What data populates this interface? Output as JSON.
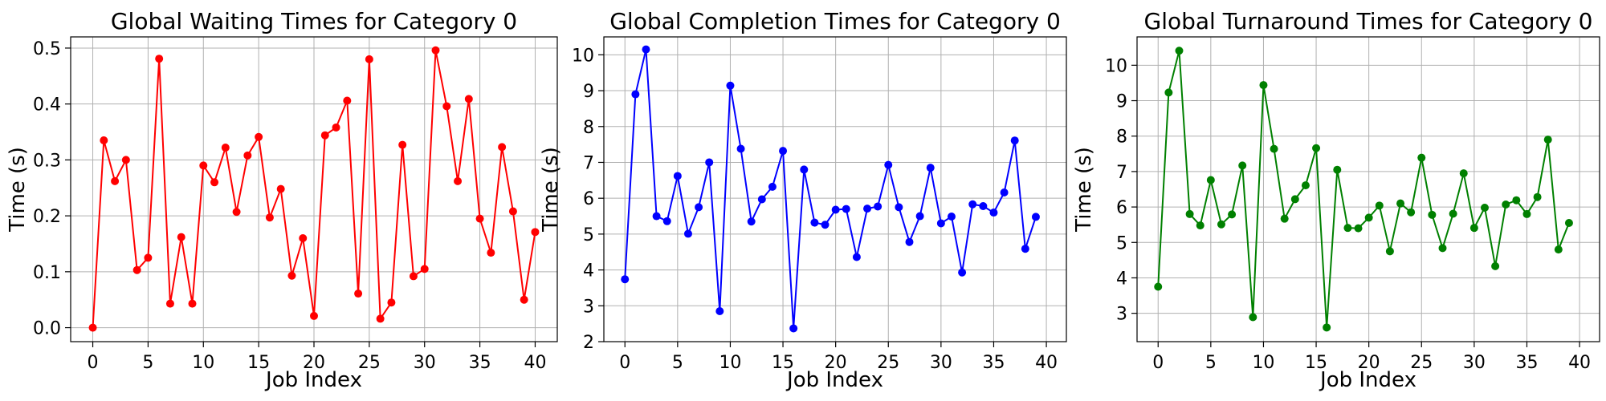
{
  "chart_data": [
    {
      "type": "line",
      "title": "Global Waiting Times for Category 0",
      "xlabel": "Job Index",
      "ylabel": "Time (s)",
      "xlim": [
        -2,
        42
      ],
      "ylim": [
        -0.025,
        0.52
      ],
      "xticks": [
        0,
        5,
        10,
        15,
        20,
        25,
        30,
        35,
        40
      ],
      "yticks": [
        0.0,
        0.1,
        0.2,
        0.3,
        0.4,
        0.5
      ],
      "ytick_labels": [
        "0.0",
        "0.1",
        "0.2",
        "0.3",
        "0.4",
        "0.5"
      ],
      "grid": true,
      "color": "#ff0000",
      "x": [
        0,
        1,
        2,
        3,
        4,
        5,
        6,
        7,
        8,
        9,
        10,
        11,
        12,
        13,
        14,
        15,
        16,
        17,
        18,
        19,
        20,
        21,
        22,
        23,
        24,
        25,
        26,
        27,
        28,
        29,
        30,
        31,
        32,
        33,
        34,
        35,
        36,
        37,
        38,
        39,
        40
      ],
      "values": [
        0.0,
        0.335,
        0.262,
        0.3,
        0.103,
        0.125,
        0.481,
        0.043,
        0.162,
        0.043,
        0.29,
        0.26,
        0.322,
        0.207,
        0.308,
        0.341,
        0.197,
        0.248,
        0.093,
        0.16,
        0.021,
        0.344,
        0.358,
        0.406,
        0.061,
        0.48,
        0.016,
        0.045,
        0.327,
        0.092,
        0.105,
        0.496,
        0.396,
        0.262,
        0.409,
        0.195,
        0.134,
        0.323,
        0.208,
        0.05,
        0.171
      ]
    },
    {
      "type": "line",
      "title": "Global Completion Times for Category 0",
      "xlabel": "Job Index",
      "ylabel": "Time (s)",
      "xlim": [
        -2,
        41.9
      ],
      "ylim": [
        2.0,
        10.5
      ],
      "xticks": [
        0,
        5,
        10,
        15,
        20,
        25,
        30,
        35,
        40
      ],
      "yticks": [
        2,
        3,
        4,
        5,
        6,
        7,
        8,
        9,
        10
      ],
      "ytick_labels": [
        "2",
        "3",
        "4",
        "5",
        "6",
        "7",
        "8",
        "9",
        "10"
      ],
      "grid": true,
      "color": "#0000ff",
      "x": [
        0,
        1,
        2,
        3,
        4,
        5,
        6,
        7,
        8,
        9,
        10,
        11,
        12,
        13,
        14,
        15,
        16,
        17,
        18,
        19,
        20,
        21,
        22,
        23,
        24,
        25,
        26,
        27,
        28,
        29,
        30,
        31,
        32,
        33,
        34,
        35,
        36,
        37,
        38,
        39
      ],
      "values": [
        3.74,
        8.9,
        10.15,
        5.5,
        5.36,
        6.62,
        5.01,
        5.75,
        7.0,
        2.85,
        9.14,
        7.38,
        5.35,
        5.97,
        6.32,
        7.32,
        2.37,
        6.8,
        5.32,
        5.26,
        5.68,
        5.7,
        4.36,
        5.71,
        5.77,
        6.93,
        5.75,
        4.78,
        5.5,
        6.85,
        5.3,
        5.49,
        3.93,
        5.83,
        5.78,
        5.6,
        6.16,
        7.61,
        4.59,
        5.48
      ]
    },
    {
      "type": "line",
      "title": "Global Turnaround Times for Category 0",
      "xlabel": "Job Index",
      "ylabel": "Time (s)",
      "xlim": [
        -2,
        41.9
      ],
      "ylim": [
        2.2,
        10.8
      ],
      "xticks": [
        0,
        5,
        10,
        15,
        20,
        25,
        30,
        35,
        40
      ],
      "yticks": [
        3,
        4,
        5,
        6,
        7,
        8,
        9,
        10
      ],
      "ytick_labels": [
        "3",
        "4",
        "5",
        "6",
        "7",
        "8",
        "9",
        "10"
      ],
      "grid": true,
      "color": "#008000",
      "x": [
        0,
        1,
        2,
        3,
        4,
        5,
        6,
        7,
        8,
        9,
        10,
        11,
        12,
        13,
        14,
        15,
        16,
        17,
        18,
        19,
        20,
        21,
        22,
        23,
        24,
        25,
        26,
        27,
        28,
        29,
        30,
        31,
        32,
        33,
        34,
        35,
        36,
        37,
        38,
        39
      ],
      "values": [
        3.75,
        9.23,
        10.41,
        5.8,
        5.48,
        6.76,
        5.51,
        5.79,
        7.17,
        2.89,
        9.44,
        7.64,
        5.67,
        6.22,
        6.61,
        7.66,
        2.6,
        7.05,
        5.41,
        5.4,
        5.7,
        6.04,
        4.75,
        6.1,
        5.85,
        7.39,
        5.78,
        4.84,
        5.81,
        6.95,
        5.41,
        5.98,
        4.33,
        6.07,
        6.19,
        5.8,
        6.28,
        7.9,
        4.8,
        5.55
      ]
    }
  ]
}
